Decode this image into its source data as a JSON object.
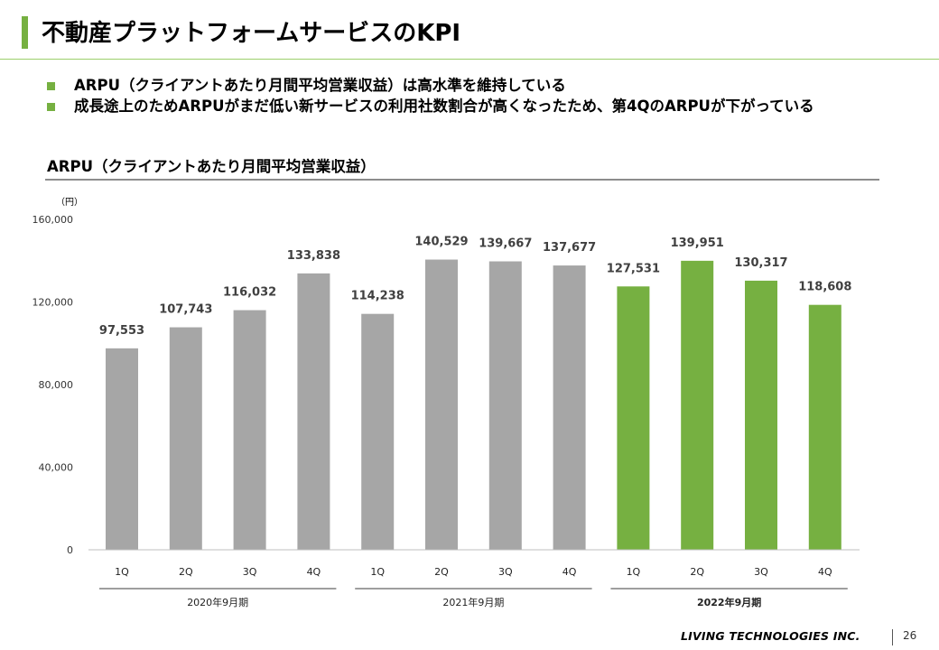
{
  "page_title": "不動産プラットフォームサービスのKPI",
  "colors": {
    "accent_green": "#76b041",
    "bar_gray": "#a6a6a6",
    "bar_green": "#76b041"
  },
  "bullets": [
    "ARPU（クライアントあたり月間平均営業収益）は高水準を維持している",
    "成長途上のためARPUがまだ低い新サービスの利用社数割合が高くなったため、第4QのARPUが下がっている"
  ],
  "chart_title": "ARPU（クライアントあたり月間平均営業収益）",
  "unit_label": "（円）",
  "chart_data": {
    "type": "bar",
    "title": "ARPU（クライアントあたり月間平均営業収益）",
    "ylabel": "（円）",
    "ylim": [
      0,
      160000
    ],
    "yticks": [
      0,
      40000,
      80000,
      120000,
      160000
    ],
    "ytick_labels": [
      "0",
      "40,000",
      "80,000",
      "120,000",
      "160,000"
    ],
    "grid": false,
    "categories": [
      "1Q",
      "2Q",
      "3Q",
      "4Q",
      "1Q",
      "2Q",
      "3Q",
      "4Q",
      "1Q",
      "2Q",
      "3Q",
      "4Q"
    ],
    "values": [
      97553,
      107743,
      116032,
      133838,
      114238,
      140529,
      139667,
      137677,
      127531,
      139951,
      130317,
      118608
    ],
    "value_labels": [
      "97,553",
      "107,743",
      "116,032",
      "133,838",
      "114,238",
      "140,529",
      "139,667",
      "137,677",
      "127,531",
      "139,951",
      "130,317",
      "118,608"
    ],
    "bar_colors": [
      "gray",
      "gray",
      "gray",
      "gray",
      "gray",
      "gray",
      "gray",
      "gray",
      "green",
      "green",
      "green",
      "green"
    ],
    "groups": [
      {
        "label": "2020年9月期",
        "bold": false
      },
      {
        "label": "2021年9月期",
        "bold": false
      },
      {
        "label": "2022年9月期",
        "bold": true
      }
    ]
  },
  "footer": {
    "brand": "LIVING TECHNOLOGIES INC.",
    "page_number": "26"
  }
}
